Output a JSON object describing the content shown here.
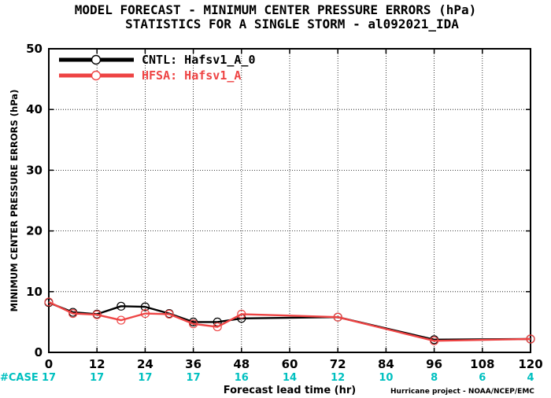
{
  "chart_data": {
    "type": "line",
    "title": "MODEL FORECAST - MINIMUM CENTER PRESSURE ERRORS (hPa)",
    "subtitle": "STATISTICS FOR A SINGLE STORM - al092021_IDA",
    "xlabel": "Forecast lead time (hr)",
    "ylabel": "MINIMUM CENTER PRESSURE ERRORS (hPa)",
    "xlim": [
      0,
      120
    ],
    "ylim": [
      0,
      50
    ],
    "x_ticks": [
      0,
      12,
      24,
      36,
      48,
      60,
      72,
      84,
      96,
      108,
      120
    ],
    "x_tick_labels": [
      "0",
      "12",
      "24",
      "36",
      "48",
      "60",
      "72",
      "84",
      "96",
      "108",
      "120"
    ],
    "y_ticks": [
      0,
      10,
      20,
      30,
      40,
      50
    ],
    "y_tick_labels": [
      "0",
      "10",
      "20",
      "30",
      "40",
      "50"
    ],
    "grid": true,
    "legend_position": "top-left",
    "series": [
      {
        "name": "CNTL: Hafsv1_A_0",
        "color": "#000000",
        "x": [
          0,
          6,
          12,
          18,
          24,
          30,
          36,
          42,
          48,
          72,
          96,
          120
        ],
        "y": [
          8.2,
          6.6,
          6.3,
          7.6,
          7.5,
          6.4,
          5.0,
          5.0,
          5.6,
          5.8,
          2.1,
          2.2
        ]
      },
      {
        "name": "HFSA: Hafsv1_A",
        "color": "#ee4444",
        "x": [
          0,
          6,
          12,
          18,
          24,
          30,
          36,
          42,
          48,
          72,
          96,
          120
        ],
        "y": [
          8.3,
          6.4,
          6.2,
          5.3,
          6.4,
          6.3,
          4.7,
          4.2,
          6.3,
          5.8,
          1.9,
          2.2
        ]
      }
    ],
    "case_label": "#CASE",
    "case_counts": [
      "17",
      "17",
      "17",
      "17",
      "16",
      "14",
      "12",
      "10",
      "8",
      "6",
      "4"
    ],
    "case_color": "#00c0c0",
    "credit": "Hurricane project - NOAA/NCEP/EMC"
  }
}
